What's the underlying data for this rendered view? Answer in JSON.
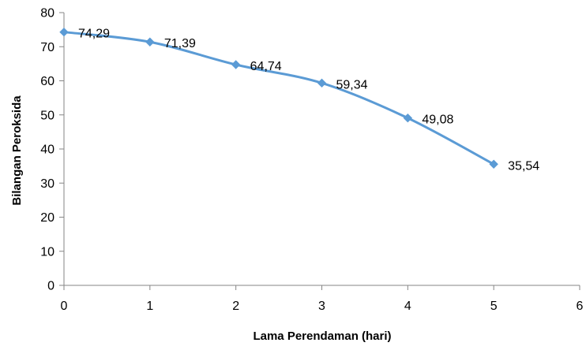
{
  "chart_data": {
    "type": "line",
    "title": "",
    "xlabel": "Lama Perendaman (hari)",
    "ylabel": "Bilangan Peroksida",
    "xlim": [
      0,
      6
    ],
    "ylim": [
      0,
      80
    ],
    "x_ticks": [
      "0",
      "1",
      "2",
      "3",
      "4",
      "5",
      "6"
    ],
    "y_ticks": [
      "0",
      "10",
      "20",
      "30",
      "40",
      "50",
      "60",
      "70",
      "80"
    ],
    "grid": false,
    "legend": "none",
    "series": [
      {
        "color": "#5B9BD5",
        "marker": "diamond",
        "smooth": true,
        "x": [
          0,
          1,
          2,
          3,
          4,
          5
        ],
        "values": [
          74.29,
          71.39,
          64.74,
          59.34,
          49.08,
          35.54
        ],
        "data_labels": [
          "74,29",
          "71,39",
          "64,74",
          "59,34",
          "49,08",
          "35,54"
        ]
      }
    ]
  }
}
